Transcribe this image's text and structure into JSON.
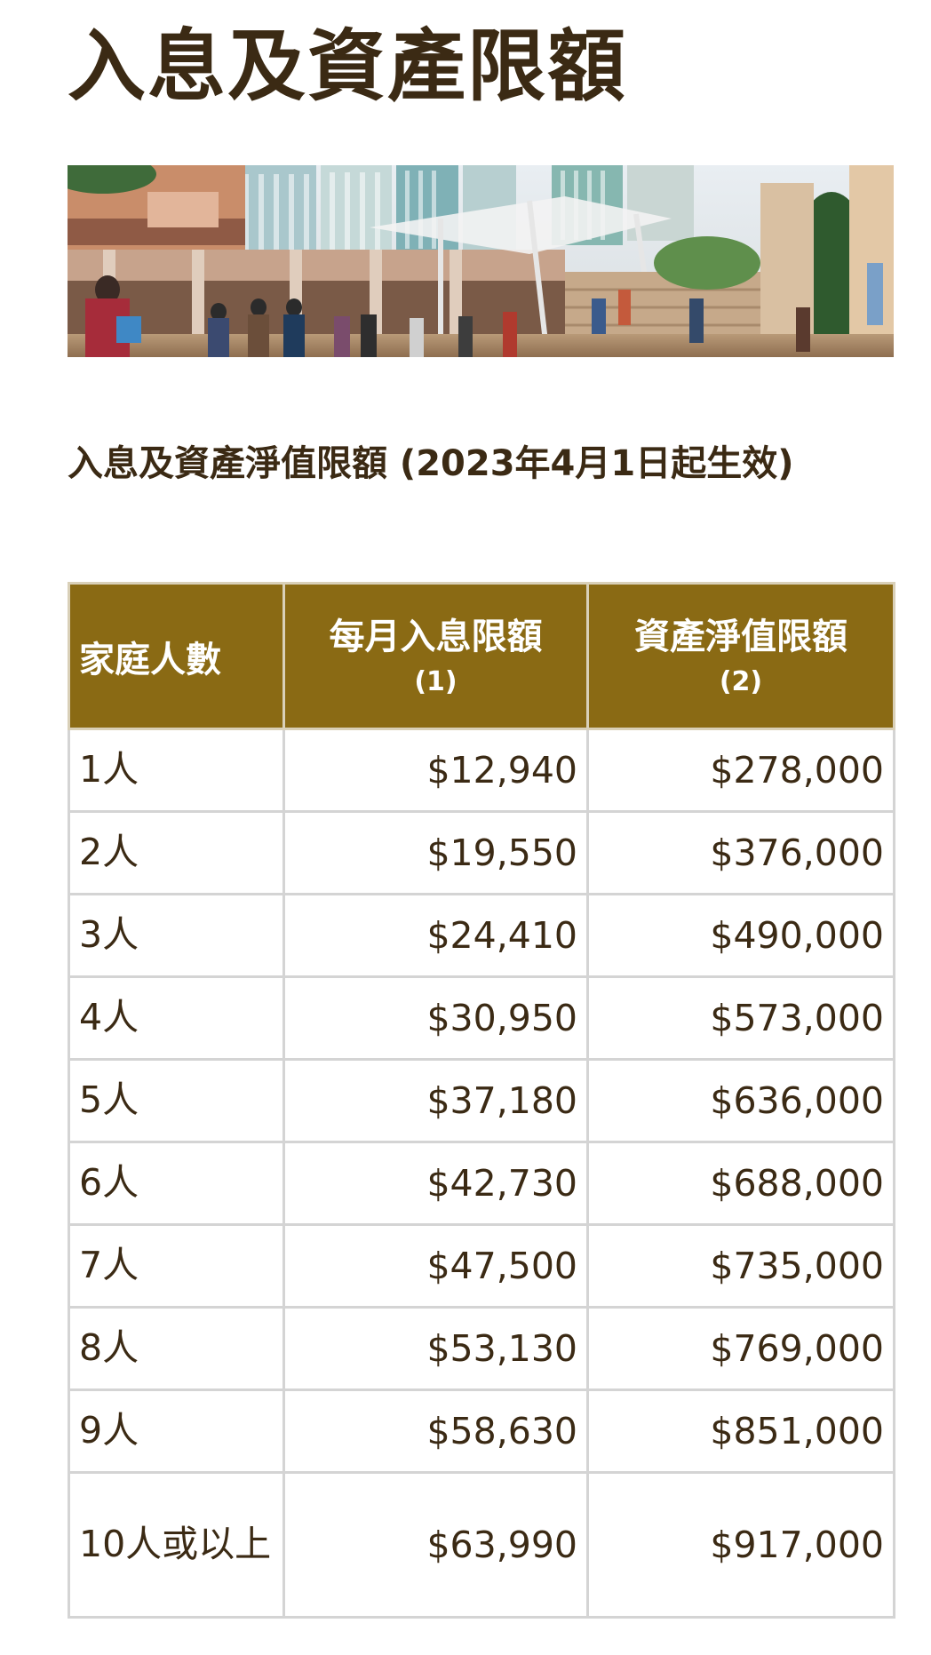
{
  "page": {
    "title": "入息及資產限額"
  },
  "section": {
    "subtitle": "入息及資產淨值限額 (2023年4月1日起生效)"
  },
  "table": {
    "headers": {
      "household": "家庭人數",
      "income": "每月入息限額",
      "income_note": "(1)",
      "assets": "資產淨值限額",
      "assets_note": "(2)"
    },
    "rows": [
      {
        "household": "1人",
        "income": "$12,940",
        "assets": "$278,000"
      },
      {
        "household": "2人",
        "income": "$19,550",
        "assets": "$376,000"
      },
      {
        "household": "3人",
        "income": "$24,410",
        "assets": "$490,000"
      },
      {
        "household": "4人",
        "income": "$30,950",
        "assets": "$573,000"
      },
      {
        "household": "5人",
        "income": "$37,180",
        "assets": "$636,000"
      },
      {
        "household": "6人",
        "income": "$42,730",
        "assets": "$688,000"
      },
      {
        "household": "7人",
        "income": "$47,500",
        "assets": "$735,000"
      },
      {
        "household": "8人",
        "income": "$53,130",
        "assets": "$769,000"
      },
      {
        "household": "9人",
        "income": "$58,630",
        "assets": "$851,000"
      },
      {
        "household": "10人或以上",
        "income": "$63,990",
        "assets": "$917,000"
      }
    ]
  },
  "colors": {
    "header_bg": "#8a6a14",
    "text": "#3b2a14",
    "border": "#d4d4d4"
  }
}
